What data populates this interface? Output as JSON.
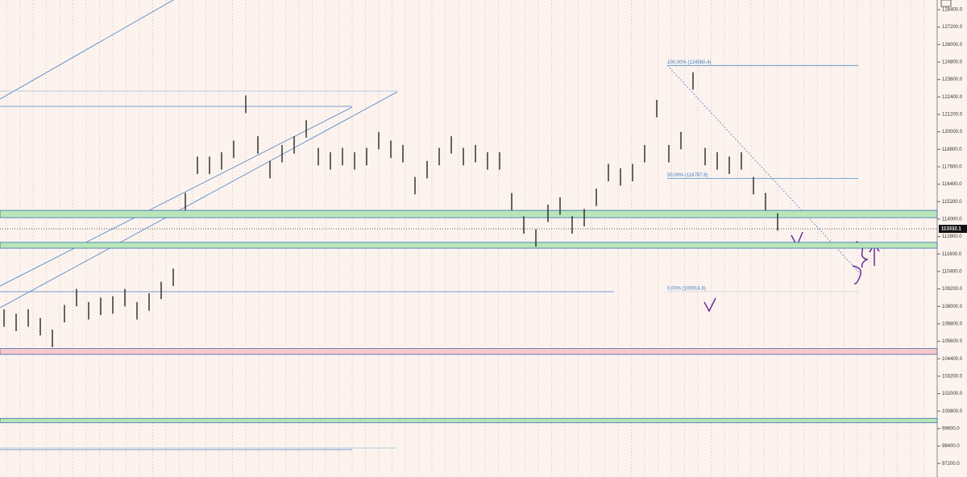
{
  "chart_data": {
    "type": "ohlc",
    "high": [
      107800,
      107500,
      107800,
      107200,
      106400,
      108100,
      109200,
      108300,
      108600,
      108700,
      109200,
      108300,
      108900,
      109700,
      110600,
      115800,
      118300,
      118300,
      118600,
      119400,
      122500,
      119700,
      118000,
      119100,
      119700,
      120800,
      118900,
      118600,
      118900,
      118600,
      118900,
      120000,
      119400,
      119100,
      116900,
      118000,
      118900,
      119700,
      118900,
      119100,
      118600,
      118600,
      115800,
      114200,
      113300,
      115000,
      115500,
      114200,
      114700,
      116100,
      117800,
      117500,
      117800,
      119100,
      122200,
      119100,
      120000,
      124100,
      118900,
      118600,
      118300,
      118600,
      116900,
      115800,
      114400
    ],
    "low": [
      106600,
      106300,
      106600,
      106000,
      105200,
      106900,
      108000,
      107100,
      107400,
      107500,
      108000,
      107100,
      107700,
      108500,
      109400,
      114600,
      117100,
      117100,
      117400,
      118200,
      121300,
      118500,
      116800,
      117900,
      118500,
      119600,
      117700,
      117400,
      117700,
      117400,
      117700,
      118800,
      118200,
      117900,
      115700,
      116800,
      117700,
      118500,
      117700,
      117900,
      117400,
      117400,
      114600,
      113000,
      112100,
      113800,
      114300,
      113000,
      113500,
      114900,
      116600,
      116300,
      116600,
      117900,
      121000,
      117900,
      118800,
      122900,
      117700,
      117400,
      117100,
      117400,
      115700,
      114600,
      113200
    ],
    "color": "#333333",
    "ylim": [
      96270,
      129065
    ],
    "yticks": [
      {
        "value": 128400,
        "label": "128400.0"
      },
      {
        "value": 127200,
        "label": "127200.0"
      },
      {
        "value": 126000,
        "label": "126000.0"
      },
      {
        "value": 124800,
        "label": "124800.0"
      },
      {
        "value": 123600,
        "label": "123600.0"
      },
      {
        "value": 122400,
        "label": "122400.0"
      },
      {
        "value": 121200,
        "label": "121200.0"
      },
      {
        "value": 120000,
        "label": "120000.0"
      },
      {
        "value": 118800,
        "label": "118800.0"
      },
      {
        "value": 117600,
        "label": "117600.0"
      },
      {
        "value": 116400,
        "label": "116400.0"
      },
      {
        "value": 115200,
        "label": "115200.0"
      },
      {
        "value": 114000,
        "label": "114000.0"
      },
      {
        "value": 112800,
        "label": "112800.0"
      },
      {
        "value": 111600,
        "label": "111600.0"
      },
      {
        "value": 110400,
        "label": "110400.0"
      },
      {
        "value": 109200,
        "label": "109200.0"
      },
      {
        "value": 108000,
        "label": "108000.0"
      },
      {
        "value": 106800,
        "label": "106800.0"
      },
      {
        "value": 105600,
        "label": "105600.0"
      },
      {
        "value": 104400,
        "label": "104400.0"
      },
      {
        "value": 103200,
        "label": "103200.0"
      },
      {
        "value": 102000,
        "label": "102000.0"
      },
      {
        "value": 100800,
        "label": "100800.0"
      },
      {
        "value": 99600,
        "label": "99600.0"
      },
      {
        "value": 98400,
        "label": "98400.0"
      },
      {
        "value": 97200,
        "label": "97200.0"
      }
    ],
    "zones": [
      {
        "low": 114100,
        "high": 114600,
        "color": "#b8e6b8"
      },
      {
        "low": 112000,
        "high": 112400,
        "color": "#b8e6b8"
      },
      {
        "low": 104700,
        "high": 105100,
        "color": "#f8c8cc"
      },
      {
        "low": 100000,
        "high": 100300,
        "color": "#b8e6b8"
      }
    ],
    "fib_levels": [
      {
        "value": 124560.4,
        "label": "100,00% (124560.4)"
      },
      {
        "value": 116787.6,
        "label": "50,00% (116787.6)"
      },
      {
        "value": 109014.8,
        "label": "0,00% (109014.8)"
      }
    ],
    "last_price": {
      "value": 113332.1,
      "label": "113332.1"
    }
  }
}
